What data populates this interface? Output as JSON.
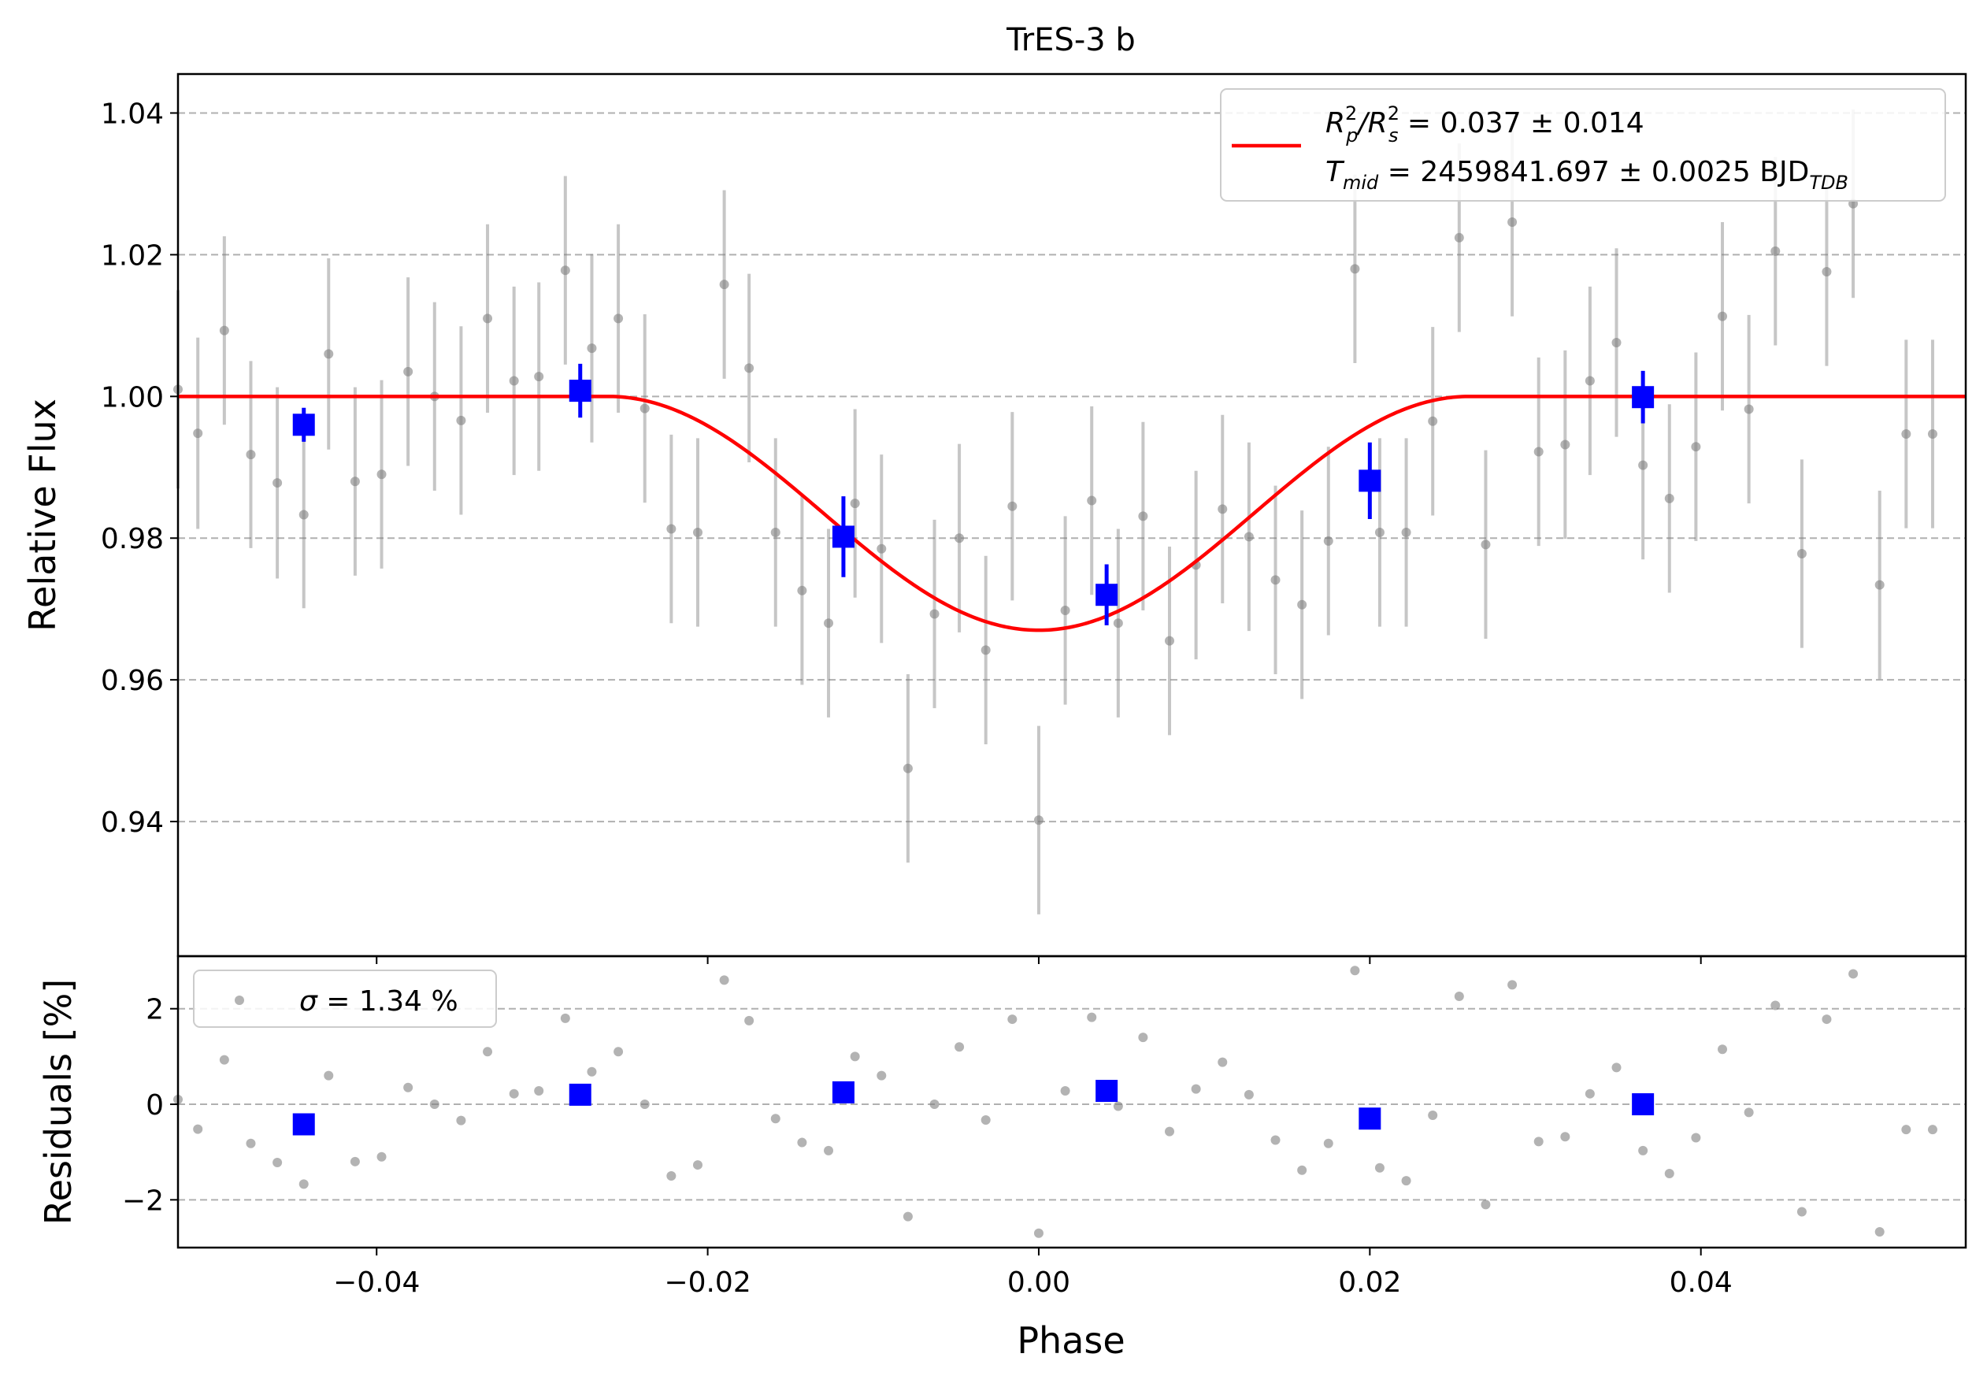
{
  "chart_data": [
    {
      "type": "scatter",
      "panel": "top",
      "title": "TrES-3 b",
      "xlabel": "",
      "ylabel": "Relative Flux",
      "xlim": [
        -0.052,
        0.056
      ],
      "ylim": [
        0.921,
        1.0455
      ],
      "grid": "horizontal dashed",
      "legend_position": "top-right",
      "x_ticks": [
        "−0.04",
        "−0.02",
        "0.00",
        "0.02",
        "0.04"
      ],
      "x_tick_values": [
        -0.04,
        -0.02,
        0.0,
        0.02,
        0.04
      ],
      "y_ticks": [
        "0.94",
        "0.96",
        "0.98",
        "1.00",
        "1.02",
        "1.04"
      ],
      "y_tick_values": [
        0.94,
        0.96,
        0.98,
        1.0,
        1.02,
        1.04
      ],
      "series": [
        {
          "kind": "raw",
          "color": "#808080",
          "points": [
            [
              -0.052,
              1.001,
              0.014
            ],
            [
              -0.0508,
              0.9948,
              0.0135
            ],
            [
              -0.0492,
              1.0093,
              0.0133
            ],
            [
              -0.0476,
              0.9918,
              0.0132
            ],
            [
              -0.046,
              0.9878,
              0.0135
            ],
            [
              -0.0444,
              0.9833,
              0.0132
            ],
            [
              -0.0429,
              1.006,
              0.0135
            ],
            [
              -0.0413,
              0.988,
              0.0133
            ],
            [
              -0.0397,
              0.989,
              0.0133
            ],
            [
              -0.0381,
              1.0035,
              0.0133
            ],
            [
              -0.0365,
              1.0,
              0.0133
            ],
            [
              -0.0349,
              0.9966,
              0.0133
            ],
            [
              -0.0333,
              1.011,
              0.0133
            ],
            [
              -0.0317,
              1.0022,
              0.0133
            ],
            [
              -0.0302,
              1.0028,
              0.0133
            ],
            [
              -0.0286,
              1.0178,
              0.0133
            ],
            [
              -0.027,
              1.0068,
              0.0133
            ],
            [
              -0.0254,
              1.011,
              0.0133
            ],
            [
              -0.0238,
              0.9983,
              0.0133
            ],
            [
              -0.0222,
              0.9813,
              0.0133
            ],
            [
              -0.0206,
              0.9808,
              0.0133
            ],
            [
              -0.019,
              1.0158,
              0.0133
            ],
            [
              -0.0175,
              1.004,
              0.0133
            ],
            [
              -0.0159,
              0.9808,
              0.0133
            ],
            [
              -0.0143,
              0.9726,
              0.0133
            ],
            [
              -0.0127,
              0.968,
              0.0133
            ],
            [
              -0.0111,
              0.9849,
              0.0133
            ],
            [
              -0.0095,
              0.9785,
              0.0133
            ],
            [
              -0.0079,
              0.9475,
              0.0133
            ],
            [
              -0.0063,
              0.9693,
              0.0133
            ],
            [
              -0.0048,
              0.98,
              0.0133
            ],
            [
              -0.0032,
              0.9642,
              0.0133
            ],
            [
              -0.0016,
              0.9845,
              0.0133
            ],
            [
              0.0,
              0.9402,
              0.0133
            ],
            [
              0.0016,
              0.9698,
              0.0133
            ],
            [
              0.0032,
              0.9853,
              0.0133
            ],
            [
              0.0048,
              0.968,
              0.0133
            ],
            [
              0.0063,
              0.9831,
              0.0133
            ],
            [
              0.0079,
              0.9655,
              0.0133
            ],
            [
              0.0095,
              0.9762,
              0.0133
            ],
            [
              0.0111,
              0.9841,
              0.0133
            ],
            [
              0.0127,
              0.9802,
              0.0133
            ],
            [
              0.0143,
              0.9741,
              0.0133
            ],
            [
              0.0159,
              0.9706,
              0.0133
            ],
            [
              0.0175,
              0.9796,
              0.0133
            ],
            [
              0.0191,
              1.018,
              0.0133
            ],
            [
              0.0206,
              0.9808,
              0.0133
            ],
            [
              0.0222,
              0.9808,
              0.0133
            ],
            [
              0.0238,
              0.9965,
              0.0133
            ],
            [
              0.0254,
              1.0224,
              0.0133
            ],
            [
              0.027,
              0.9791,
              0.0133
            ],
            [
              0.0286,
              1.0246,
              0.0133
            ],
            [
              0.0302,
              0.9922,
              0.0133
            ],
            [
              0.0318,
              0.9932,
              0.0133
            ],
            [
              0.0333,
              1.0022,
              0.0133
            ],
            [
              0.0349,
              1.0076,
              0.0133
            ],
            [
              0.0365,
              0.9903,
              0.0133
            ],
            [
              0.0381,
              0.9856,
              0.0133
            ],
            [
              0.0397,
              0.9929,
              0.0133
            ],
            [
              0.0413,
              1.0113,
              0.0133
            ],
            [
              0.0429,
              0.9982,
              0.0133
            ],
            [
              0.0445,
              1.0205,
              0.0133
            ],
            [
              0.0461,
              0.9778,
              0.0133
            ],
            [
              0.0476,
              1.0176,
              0.0133
            ],
            [
              0.0492,
              1.0272,
              0.0133
            ],
            [
              0.0508,
              0.9734,
              0.0133
            ],
            [
              0.0524,
              0.9947,
              0.0133
            ],
            [
              0.054,
              0.9947,
              0.0133
            ]
          ]
        },
        {
          "kind": "binned",
          "color": "#0000ff",
          "points": [
            [
              -0.0444,
              0.996,
              0.0024
            ],
            [
              -0.0277,
              1.0008,
              0.0038
            ],
            [
              -0.0118,
              0.9802,
              0.0057
            ],
            [
              0.0041,
              0.972,
              0.0043
            ],
            [
              0.02,
              0.9881,
              0.0054
            ],
            [
              0.0365,
              0.9999,
              0.0037
            ]
          ]
        },
        {
          "kind": "model",
          "color": "#ff0000",
          "transit_depth": 0.033,
          "ingress_start": -0.026,
          "egress_end": 0.026
        }
      ],
      "legend": {
        "line1_a": "R",
        "line1_a_sup": "2",
        "line1_a_sub": "p",
        "line1_b": "/R",
        "line1_b_sup": "2",
        "line1_b_sub": "s",
        "line1_c": " = 0.037 ± 0.014",
        "line2_a": "T",
        "line2_a_sub": "mid",
        "line2_b": " = 2459841.697 ± 0.0025 BJD",
        "line2_b_sub": "TDB"
      }
    },
    {
      "type": "scatter",
      "panel": "bottom",
      "xlabel": "Phase",
      "ylabel": "Residuals [%]",
      "xlim": [
        -0.052,
        0.056
      ],
      "ylim": [
        -3.0,
        3.1
      ],
      "grid": "horizontal dashed",
      "legend_position": "top-left",
      "y_ticks": [
        "−2",
        "0",
        "2"
      ],
      "y_tick_values": [
        -2,
        0,
        2
      ],
      "series": [
        {
          "kind": "raw",
          "color": "#808080",
          "points": [
            [
              -0.052,
              0.1
            ],
            [
              -0.0508,
              -0.52
            ],
            [
              -0.0492,
              0.93
            ],
            [
              -0.0476,
              -0.82
            ],
            [
              -0.046,
              -1.22
            ],
            [
              -0.0444,
              -1.67
            ],
            [
              -0.0429,
              0.6
            ],
            [
              -0.0413,
              -1.2
            ],
            [
              -0.0397,
              -1.1
            ],
            [
              -0.0381,
              0.35
            ],
            [
              -0.0365,
              0.0
            ],
            [
              -0.0349,
              -0.34
            ],
            [
              -0.0333,
              1.1
            ],
            [
              -0.0317,
              0.22
            ],
            [
              -0.0302,
              0.28
            ],
            [
              -0.0286,
              1.8
            ],
            [
              -0.027,
              0.68
            ],
            [
              -0.0254,
              1.1
            ],
            [
              -0.0238,
              0.0
            ],
            [
              -0.0222,
              -1.5
            ],
            [
              -0.0206,
              -1.27
            ],
            [
              -0.019,
              2.6
            ],
            [
              -0.0175,
              1.75
            ],
            [
              -0.0159,
              -0.3
            ],
            [
              -0.0143,
              -0.8
            ],
            [
              -0.0127,
              -0.97
            ],
            [
              -0.0111,
              1.0
            ],
            [
              -0.0095,
              0.6
            ],
            [
              -0.0079,
              -2.35
            ],
            [
              -0.0063,
              0.0
            ],
            [
              -0.0048,
              1.2
            ],
            [
              -0.0032,
              -0.33
            ],
            [
              -0.0016,
              1.78
            ],
            [
              0.0,
              -2.7
            ],
            [
              0.0016,
              0.28
            ],
            [
              0.0032,
              1.82
            ],
            [
              0.0048,
              -0.04
            ],
            [
              0.0063,
              1.4
            ],
            [
              0.0079,
              -0.57
            ],
            [
              0.0095,
              0.32
            ],
            [
              0.0111,
              0.88
            ],
            [
              0.0127,
              0.2
            ],
            [
              0.0143,
              -0.75
            ],
            [
              0.0159,
              -1.38
            ],
            [
              0.0175,
              -0.82
            ],
            [
              0.0191,
              2.8
            ],
            [
              0.0206,
              -1.33
            ],
            [
              0.0222,
              -1.6
            ],
            [
              0.0238,
              -0.23
            ],
            [
              0.0254,
              2.26
            ],
            [
              0.027,
              -2.1
            ],
            [
              0.0286,
              2.5
            ],
            [
              0.0302,
              -0.78
            ],
            [
              0.0318,
              -0.68
            ],
            [
              0.0333,
              0.22
            ],
            [
              0.0349,
              0.77
            ],
            [
              0.0365,
              -0.97
            ],
            [
              0.0381,
              -1.45
            ],
            [
              0.0397,
              -0.7
            ],
            [
              0.0413,
              1.15
            ],
            [
              0.0429,
              -0.17
            ],
            [
              0.0445,
              2.07
            ],
            [
              0.0461,
              -2.25
            ],
            [
              0.0476,
              1.78
            ],
            [
              0.0492,
              2.73
            ],
            [
              0.0508,
              -2.67
            ],
            [
              0.0524,
              -0.53
            ],
            [
              0.054,
              -0.53
            ]
          ]
        },
        {
          "kind": "binned",
          "color": "#0000ff",
          "points": [
            [
              -0.0444,
              -0.42
            ],
            [
              -0.0277,
              0.2
            ],
            [
              -0.0118,
              0.25
            ],
            [
              0.0041,
              0.28
            ],
            [
              0.02,
              -0.3
            ],
            [
              0.0365,
              0.0
            ]
          ]
        }
      ],
      "legend": {
        "symbol_prefix": "σ",
        "text": " = 1.34 %"
      }
    }
  ]
}
